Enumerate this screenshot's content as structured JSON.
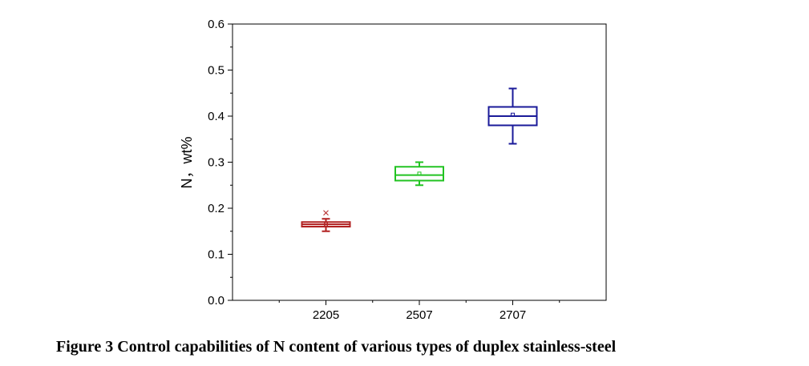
{
  "caption": "Figure 3 Control capabilities of N content of various types of duplex stainless-steel",
  "chart_data": {
    "type": "box",
    "title": "",
    "xlabel": "",
    "ylabel": "N，wt%",
    "ylim": [
      0,
      0.6
    ],
    "yticks": [
      "0.0",
      "0.1",
      "0.2",
      "0.3",
      "0.4",
      "0.5",
      "0.6"
    ],
    "categories": [
      "2205",
      "2507",
      "2707"
    ],
    "grid": false,
    "series": [
      {
        "category": "2205",
        "color": "#b22222",
        "whisker_low": 0.15,
        "q1": 0.16,
        "median": 0.165,
        "q3": 0.17,
        "whisker_high": 0.177,
        "mean": 0.165,
        "outliers": [
          0.19
        ]
      },
      {
        "category": "2507",
        "color": "#22c322",
        "whisker_low": 0.25,
        "q1": 0.26,
        "median": 0.272,
        "q3": 0.29,
        "whisker_high": 0.3,
        "mean": 0.275,
        "outliers": []
      },
      {
        "category": "2707",
        "color": "#1a1a99",
        "whisker_low": 0.34,
        "q1": 0.38,
        "median": 0.4,
        "q3": 0.42,
        "whisker_high": 0.46,
        "mean": 0.403,
        "outliers": []
      }
    ]
  }
}
